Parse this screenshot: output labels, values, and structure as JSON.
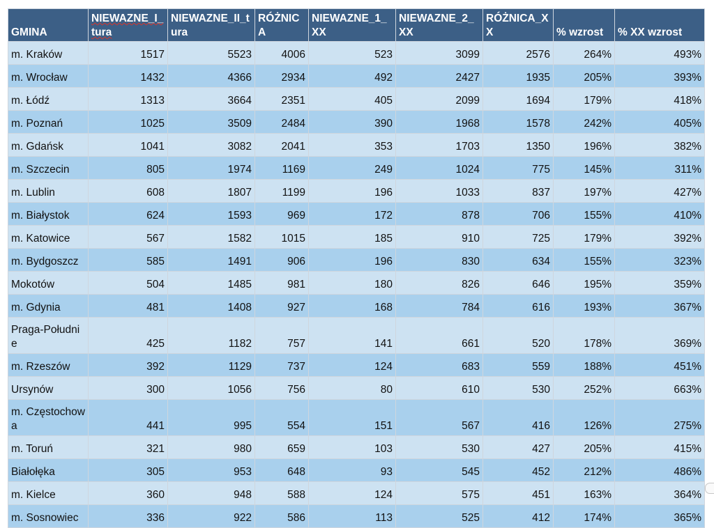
{
  "table": {
    "headers": [
      "GMINA",
      "NIEWAZNE_I_tura",
      "NIEWAZNE_II_tura",
      "RÓŻNICA",
      "NIEWAZNE_1_XX",
      "NIEWAZNE_2_XX",
      "RÓŻNICA_XX",
      "% wzrost",
      "% XX wzrost"
    ],
    "rows": [
      [
        "m. Kraków",
        "1517",
        "5523",
        "4006",
        "523",
        "3099",
        "2576",
        "264%",
        "493%"
      ],
      [
        "m. Wrocław",
        "1432",
        "4366",
        "2934",
        "492",
        "2427",
        "1935",
        "205%",
        "393%"
      ],
      [
        "m. Łódź",
        "1313",
        "3664",
        "2351",
        "405",
        "2099",
        "1694",
        "179%",
        "418%"
      ],
      [
        "m. Poznań",
        "1025",
        "3509",
        "2484",
        "390",
        "1968",
        "1578",
        "242%",
        "405%"
      ],
      [
        "m. Gdańsk",
        "1041",
        "3082",
        "2041",
        "353",
        "1703",
        "1350",
        "196%",
        "382%"
      ],
      [
        "m. Szczecin",
        "805",
        "1974",
        "1169",
        "249",
        "1024",
        "775",
        "145%",
        "311%"
      ],
      [
        "m. Lublin",
        "608",
        "1807",
        "1199",
        "196",
        "1033",
        "837",
        "197%",
        "427%"
      ],
      [
        "m. Białystok",
        "624",
        "1593",
        "969",
        "172",
        "878",
        "706",
        "155%",
        "410%"
      ],
      [
        "m. Katowice",
        "567",
        "1582",
        "1015",
        "185",
        "910",
        "725",
        "179%",
        "392%"
      ],
      [
        "m. Bydgoszcz",
        "585",
        "1491",
        "906",
        "196",
        "830",
        "634",
        "155%",
        "323%"
      ],
      [
        "Mokotów",
        "504",
        "1485",
        "981",
        "180",
        "826",
        "646",
        "195%",
        "359%"
      ],
      [
        "m. Gdynia",
        "481",
        "1408",
        "927",
        "168",
        "784",
        "616",
        "193%",
        "367%"
      ],
      [
        "Praga-Południe",
        "425",
        "1182",
        "757",
        "141",
        "661",
        "520",
        "178%",
        "369%"
      ],
      [
        "m. Rzeszów",
        "392",
        "1129",
        "737",
        "124",
        "683",
        "559",
        "188%",
        "451%"
      ],
      [
        "Ursynów",
        "300",
        "1056",
        "756",
        "80",
        "610",
        "530",
        "252%",
        "663%"
      ],
      [
        "m. Częstochowa",
        "441",
        "995",
        "554",
        "151",
        "567",
        "416",
        "126%",
        "275%"
      ],
      [
        "m. Toruń",
        "321",
        "980",
        "659",
        "103",
        "530",
        "427",
        "205%",
        "415%"
      ],
      [
        "Białołęka",
        "305",
        "953",
        "648",
        "93",
        "545",
        "452",
        "212%",
        "486%"
      ],
      [
        "m. Kielce",
        "360",
        "948",
        "588",
        "124",
        "575",
        "451",
        "163%",
        "364%"
      ],
      [
        "m. Sosnowiec",
        "336",
        "922",
        "586",
        "113",
        "525",
        "412",
        "174%",
        "365%"
      ]
    ]
  },
  "colors": {
    "header_bg": "#3c5f86",
    "header_text": "#ffffff",
    "row_light": "#cde2f2",
    "row_dark": "#a9d0ed",
    "spellcheck_underline": "#d9342b"
  }
}
